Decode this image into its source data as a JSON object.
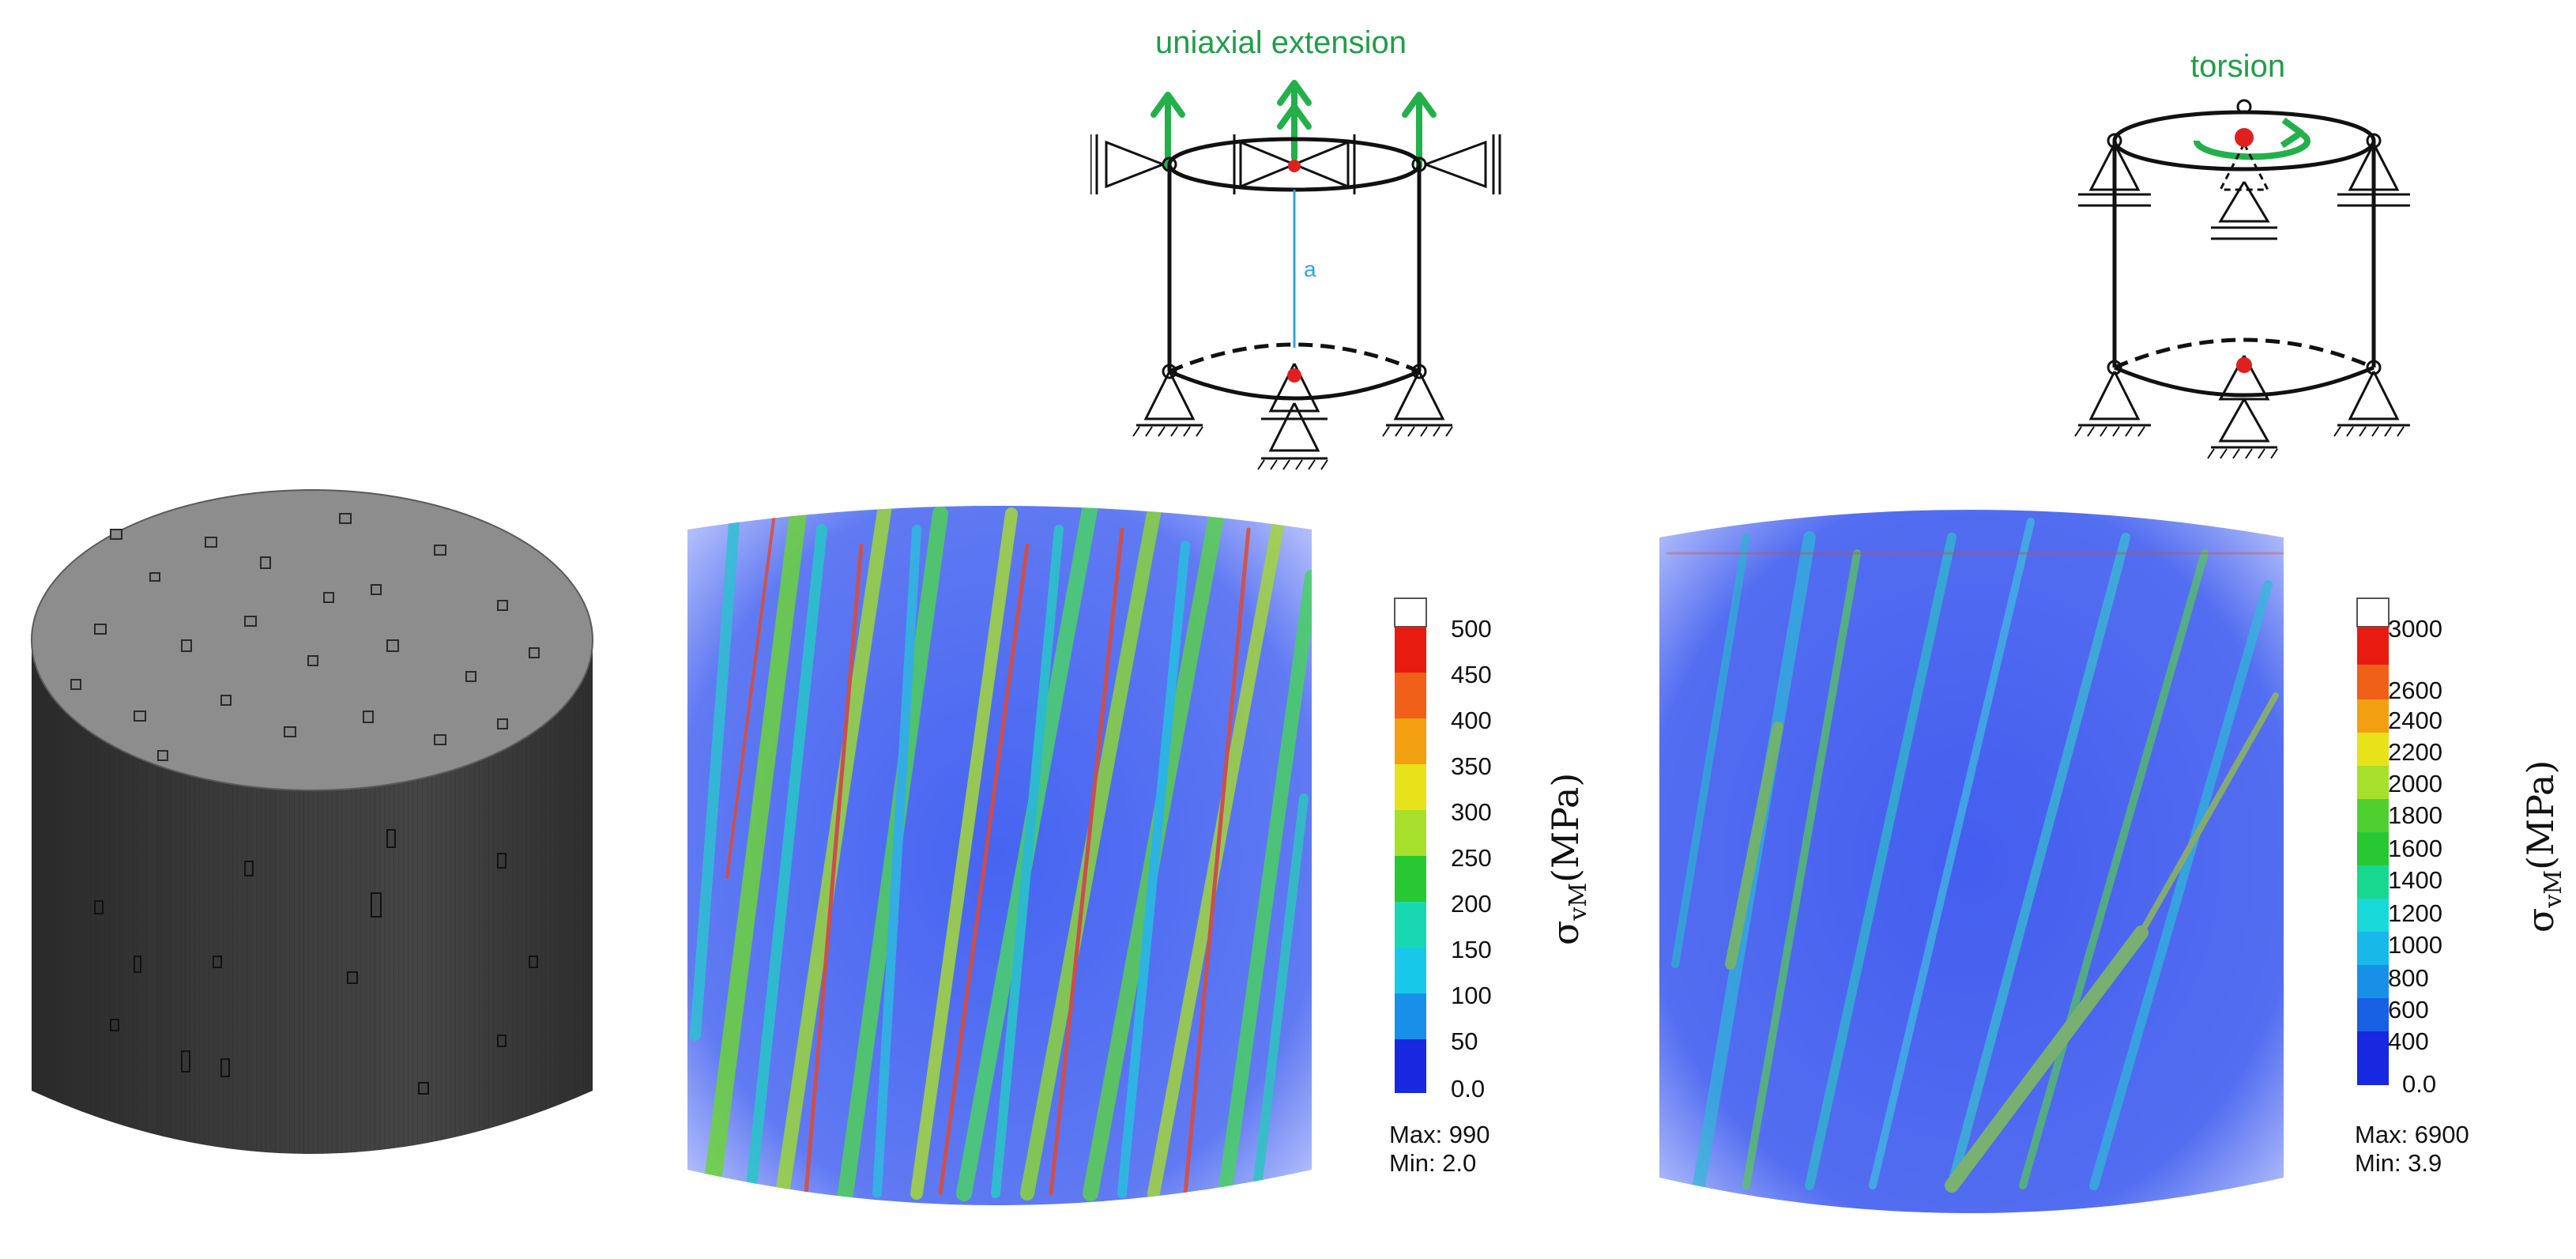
{
  "panels": {
    "extension": {
      "title": "uniaxial extension",
      "axis_label_a": "a",
      "colorbar": {
        "ticks": [
          "500",
          "450",
          "400",
          "350",
          "300",
          "250",
          "200",
          "150",
          "100",
          "50",
          "0.0"
        ],
        "max_label": "Max: 990",
        "min_label": "Min: 2.0",
        "quantity": "σ",
        "quantity_sub": "vM",
        "unit": "(MPa)"
      }
    },
    "torsion": {
      "title": "torsion",
      "colorbar": {
        "ticks": [
          "3000",
          "2600",
          "2400",
          "2200",
          "2000",
          "1800",
          "1600",
          "1400",
          "1200",
          "1000",
          "800",
          "600",
          "400",
          "0.0"
        ],
        "max_label": "Max: 6900",
        "min_label": "Min: 3.9",
        "quantity": "σ",
        "quantity_sub": "vM",
        "unit": "(MPa)"
      }
    }
  },
  "colors": {
    "green_arrow": "#23b04a",
    "title_green": "#1f9e48",
    "blue_body": "#3c5cf0",
    "cb_white": "#ffffff",
    "cb_red": "#e81b10",
    "cb_orange": "#f48b13",
    "cb_yellow": "#e6e81a",
    "cb_green": "#28c832",
    "cb_cyan": "#18d8d8",
    "cb_blue": "#1828e0"
  }
}
